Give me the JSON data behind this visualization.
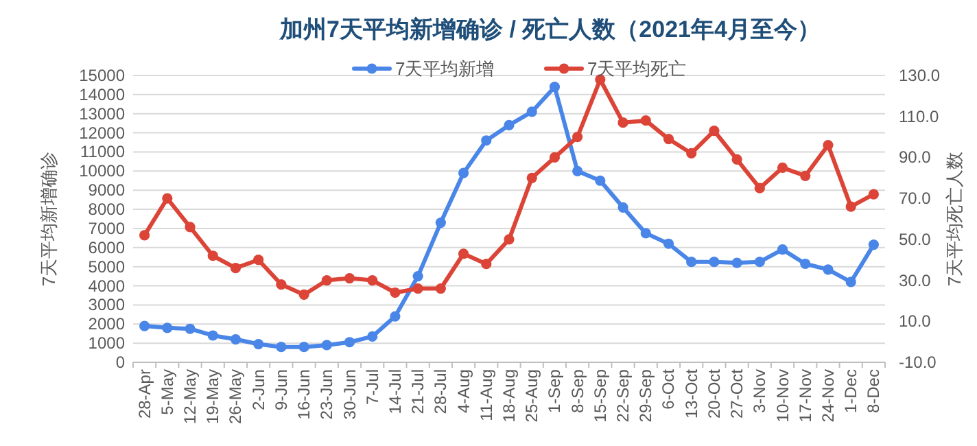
{
  "chart_data": {
    "type": "line",
    "title": "加州7天平均新增确诊 / 死亡人数（2021年4月至今）",
    "ylabel": "7天平均新增确诊",
    "y2label": "7天平均死亡人数",
    "categories": [
      "28-Apr",
      "5-May",
      "12-May",
      "19-May",
      "26-May",
      "2-Jun",
      "9-Jun",
      "16-Jun",
      "23-Jun",
      "30-Jun",
      "7-Jul",
      "14-Jul",
      "21-Jul",
      "28-Jul",
      "4-Aug",
      "11-Aug",
      "18-Aug",
      "25-Aug",
      "1-Sep",
      "8-Sep",
      "15-Sep",
      "22-Sep",
      "29-Sep",
      "6-Oct",
      "13-Oct",
      "20-Oct",
      "27-Oct",
      "3-Nov",
      "10-Nov",
      "17-Nov",
      "24-Nov",
      "1-Dec",
      "8-Dec"
    ],
    "series": [
      {
        "name": "7天平均新增",
        "color": "#4a86e8",
        "values": [
          1900,
          1800,
          1750,
          1400,
          1200,
          950,
          800,
          800,
          900,
          1050,
          1350,
          2400,
          4500,
          7300,
          9900,
          11600,
          12400,
          13100,
          14400,
          10000,
          9500,
          8100,
          6750,
          6200,
          5250,
          5250,
          5200,
          5250,
          5900,
          5150,
          4850,
          4200,
          6150
        ]
      },
      {
        "name": "7天平均死亡",
        "color": "#db4437",
        "axis": "y2",
        "values": [
          52,
          70,
          56,
          42,
          36,
          40,
          28,
          23,
          30,
          31,
          30,
          24,
          26,
          26,
          43,
          38,
          50,
          80,
          90,
          100,
          128,
          107,
          108,
          99,
          92,
          103,
          89,
          75,
          85,
          81,
          96,
          66,
          72
        ]
      }
    ],
    "ylim": [
      0,
      15000
    ],
    "yticks": [
      0,
      1000,
      2000,
      3000,
      4000,
      5000,
      6000,
      7000,
      8000,
      9000,
      10000,
      11000,
      12000,
      13000,
      14000,
      15000
    ],
    "y2lim": [
      -10,
      130
    ],
    "y2ticks": [
      {
        "value": -10,
        "label": "-10.0"
      },
      {
        "value": 10,
        "label": "10.0"
      },
      {
        "value": 30,
        "label": "30.0"
      },
      {
        "value": 50,
        "label": "50.0"
      },
      {
        "value": 70,
        "label": "70.0"
      },
      {
        "value": 90,
        "label": "90.0"
      },
      {
        "value": 110,
        "label": "110.0"
      },
      {
        "value": 130,
        "label": "130.0"
      }
    ],
    "grid": "y",
    "legend": "top",
    "marker": "circle",
    "line_style": "solid"
  }
}
